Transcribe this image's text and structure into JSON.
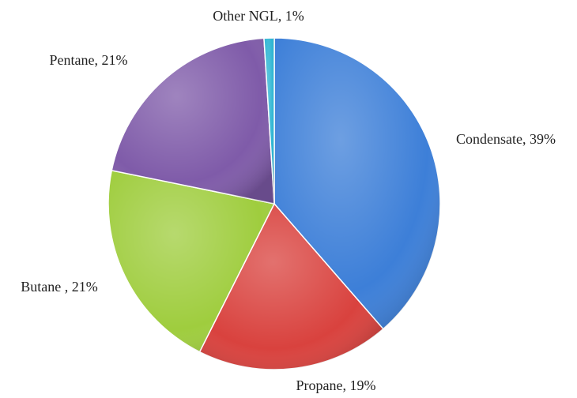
{
  "chart_data": {
    "type": "pie",
    "values": [
      39,
      19,
      21,
      21,
      1
    ],
    "value_labels": [
      "Condensate, 39%",
      "Propane, 19%",
      "Butane , 21%",
      "Pentane, 21%",
      "Other NGL, 1%"
    ],
    "colors": [
      "#3d7fd8",
      "#d9423e",
      "#9fcd3e",
      "#7f5ba9",
      "#2db5d3"
    ]
  }
}
